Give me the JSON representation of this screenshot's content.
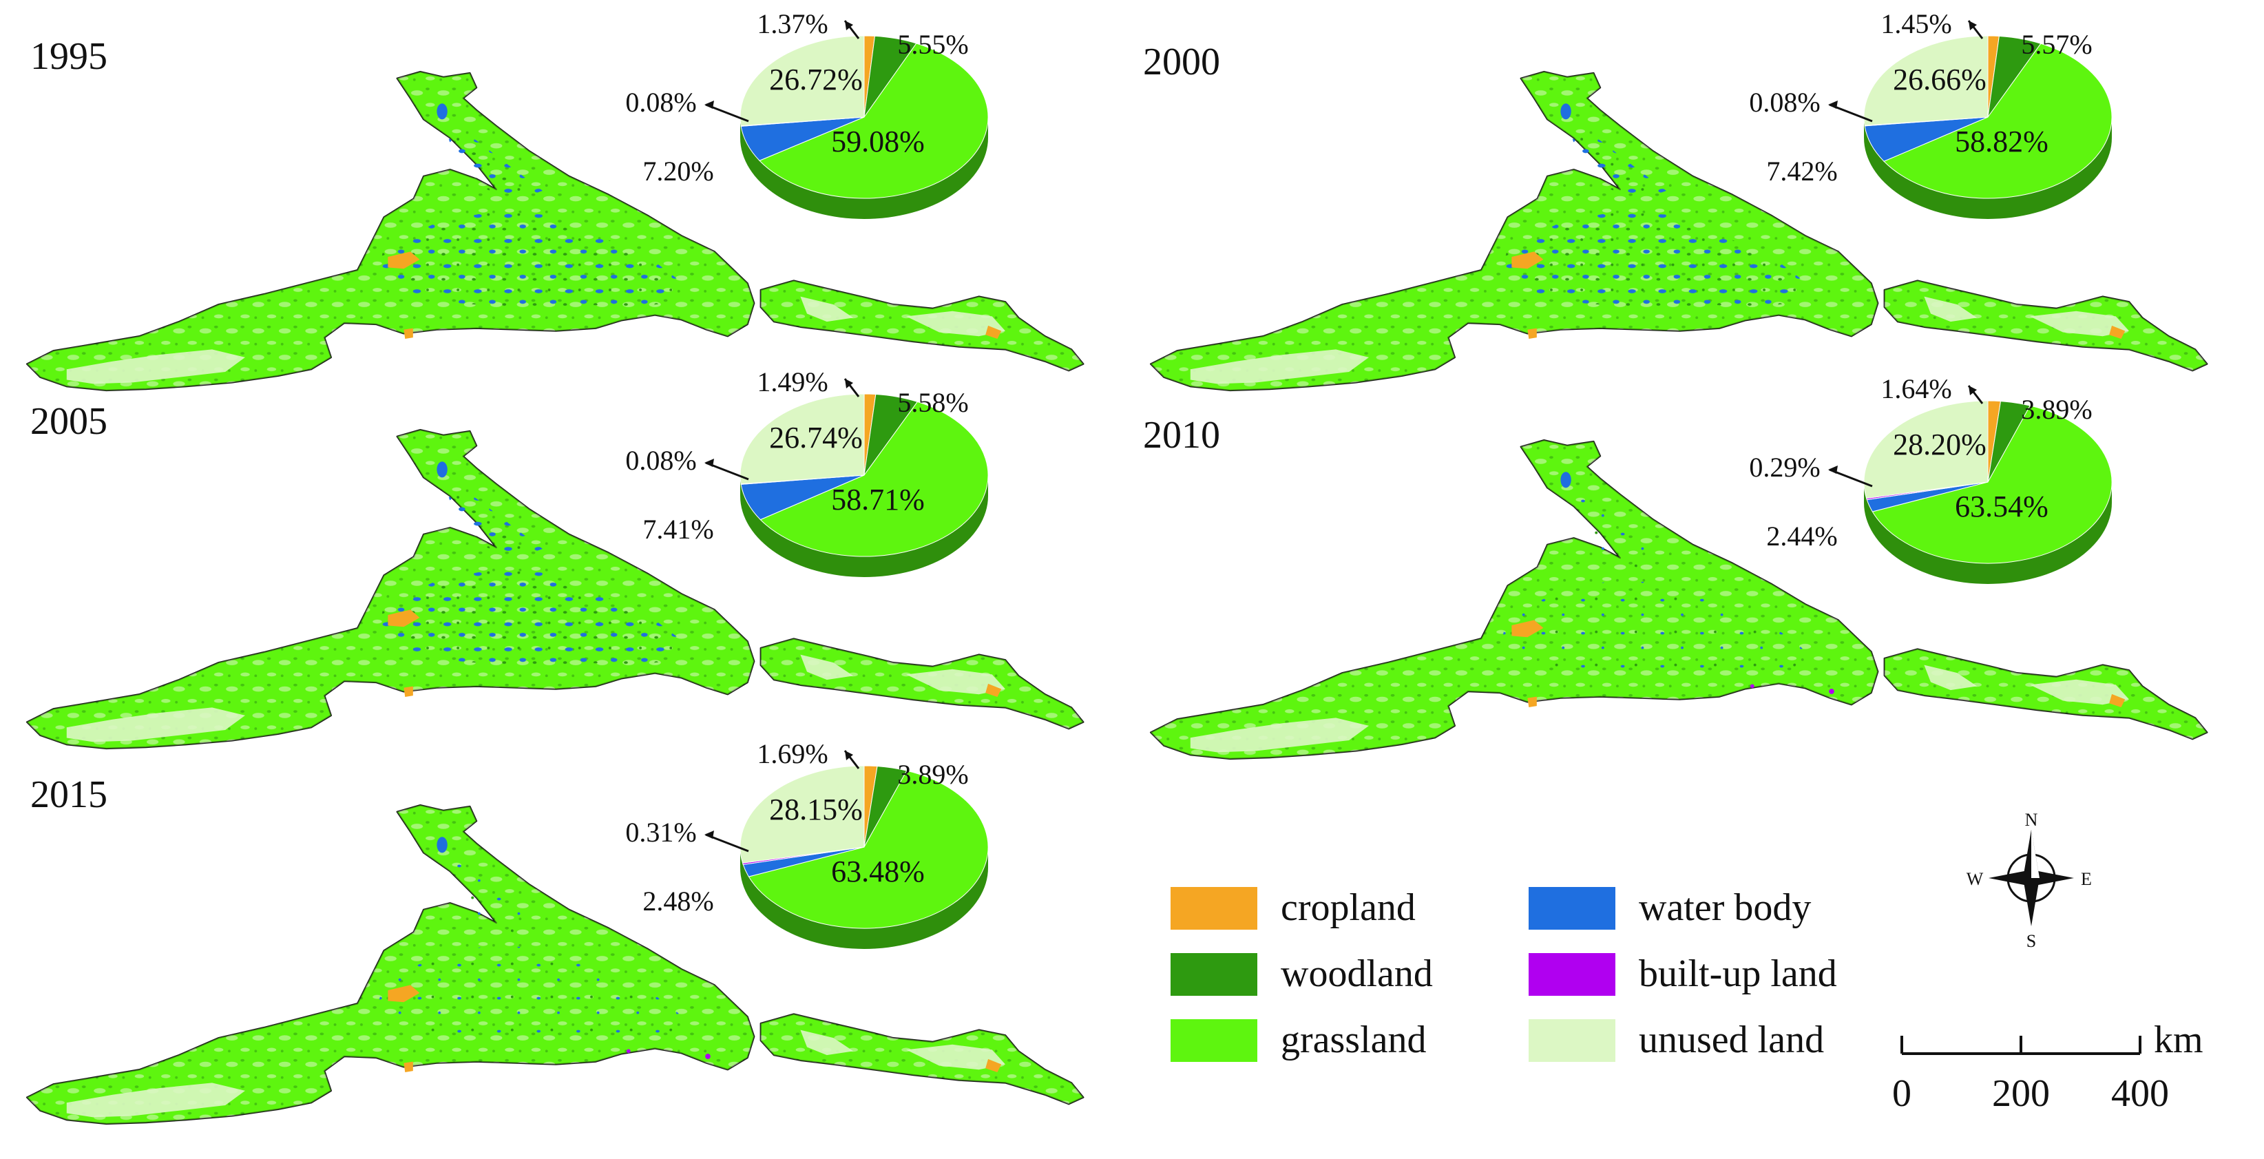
{
  "colors": {
    "cropland": "#f5a623",
    "woodland": "#2e9a10",
    "grassland": "#5ef50f",
    "water_body": "#1f6fe0",
    "built_up_land": "#b000f0",
    "unused_land": "#dcf7c4",
    "outline": "#1a1a1a"
  },
  "panels": [
    {
      "year": "1995",
      "pie": {
        "cropland": 1.37,
        "woodland": 5.55,
        "grassland": 59.08,
        "water_body": 7.2,
        "built_up_land": 0.08,
        "unused_land": 26.72
      },
      "labels": {
        "cropland": "1.37%",
        "woodland": "5.55%",
        "grassland": "59.08%",
        "water_body": "7.20%",
        "built_up_land": "0.08%",
        "unused_land": "26.72%"
      }
    },
    {
      "year": "2000",
      "pie": {
        "cropland": 1.45,
        "woodland": 5.57,
        "grassland": 58.82,
        "water_body": 7.42,
        "built_up_land": 0.08,
        "unused_land": 26.66
      },
      "labels": {
        "cropland": "1.45%",
        "woodland": "5.57%",
        "grassland": "58.82%",
        "water_body": "7.42%",
        "built_up_land": "0.08%",
        "unused_land": "26.66%"
      }
    },
    {
      "year": "2005",
      "pie": {
        "cropland": 1.49,
        "woodland": 5.58,
        "grassland": 58.71,
        "water_body": 7.41,
        "built_up_land": 0.08,
        "unused_land": 26.74
      },
      "labels": {
        "cropland": "1.49%",
        "woodland": "5.58%",
        "grassland": "58.71%",
        "water_body": "7.41%",
        "built_up_land": "0.08%",
        "unused_land": "26.74%"
      }
    },
    {
      "year": "2010",
      "pie": {
        "cropland": 1.64,
        "woodland": 3.89,
        "grassland": 63.54,
        "water_body": 2.44,
        "built_up_land": 0.29,
        "unused_land": 28.2
      },
      "labels": {
        "cropland": "1.64%",
        "woodland": "3.89%",
        "grassland": "63.54%",
        "water_body": "2.44%",
        "built_up_land": "0.29%",
        "unused_land": "28.20%"
      }
    },
    {
      "year": "2015",
      "pie": {
        "cropland": 1.69,
        "woodland": 3.89,
        "grassland": 63.48,
        "water_body": 2.48,
        "built_up_land": 0.31,
        "unused_land": 28.15
      },
      "labels": {
        "cropland": "1.69%",
        "woodland": "3.89%",
        "grassland": "63.48%",
        "water_body": "2.48%",
        "built_up_land": "0.31%",
        "unused_land": "28.15%"
      }
    }
  ],
  "legend": {
    "items": [
      {
        "key": "cropland",
        "label": "cropland"
      },
      {
        "key": "woodland",
        "label": "woodland"
      },
      {
        "key": "grassland",
        "label": "grassland"
      },
      {
        "key": "water_body",
        "label": "water body"
      },
      {
        "key": "built_up_land",
        "label": "built-up land"
      },
      {
        "key": "unused_land",
        "label": "unused land"
      }
    ]
  },
  "compass": {
    "n": "N",
    "s": "S",
    "e": "E",
    "w": "W"
  },
  "scale_bar": {
    "unit": "km",
    "ticks": [
      "0",
      "200",
      "400"
    ]
  }
}
